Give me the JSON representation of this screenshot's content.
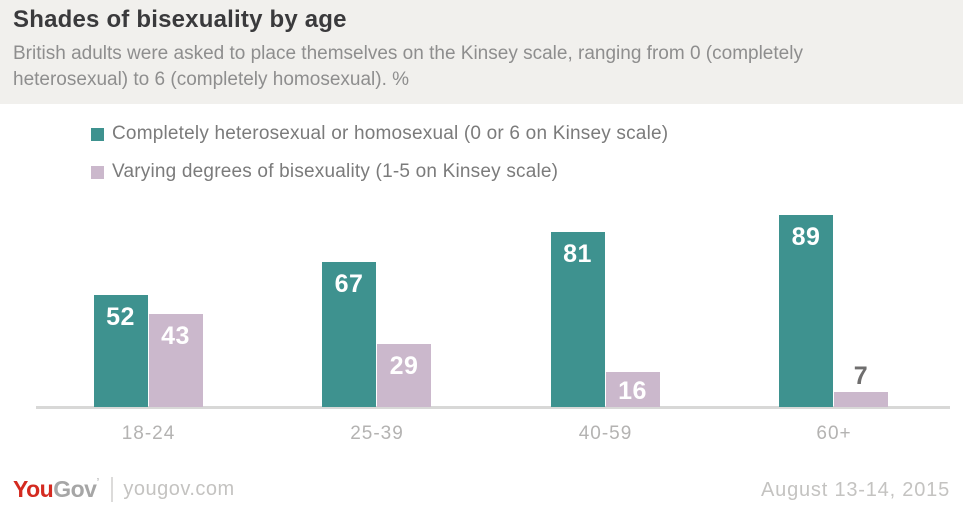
{
  "header": {
    "title": "Shades of bisexuality by age",
    "subtitle": "British adults were asked to place themselves on the Kinsey scale, ranging from 0 (completely heterosexual) to 6 (completely homosexual). %"
  },
  "legend": [
    {
      "label": "Completely heterosexual or homosexual (0 or 6 on Kinsey scale)",
      "color": "#3e928f"
    },
    {
      "label": "Varying degrees of bisexuality (1-5 on Kinsey scale)",
      "color": "#cbb8cc"
    }
  ],
  "chart_data": {
    "type": "bar",
    "title": "Shades of bisexuality by age",
    "unit": "%",
    "categories": [
      "18-24",
      "25-39",
      "40-59",
      "60+"
    ],
    "series": [
      {
        "name": "Completely heterosexual or homosexual (0 or 6 on Kinsey scale)",
        "color": "#3e928f",
        "values": [
          52,
          67,
          81,
          89
        ]
      },
      {
        "name": "Varying degrees of bisexuality (1-5 on Kinsey scale)",
        "color": "#cbb8cc",
        "values": [
          43,
          29,
          16,
          7
        ]
      }
    ],
    "ylim": [
      0,
      100
    ],
    "grid": false,
    "value_labels": true,
    "legend_position": "top-left"
  },
  "footer": {
    "logo_part1": "You",
    "logo_part2": "Gov",
    "logo_mark": "’",
    "site": "yougov.com",
    "date": "August 13-14, 2015"
  },
  "colors": {
    "teal": "#3e928f",
    "lavender": "#cbb8cc",
    "axis_line": "#d8d8d7",
    "header_bg": "#f1f0ed",
    "outside_label": "#6f6e6e",
    "logo_red": "#d42a20"
  }
}
